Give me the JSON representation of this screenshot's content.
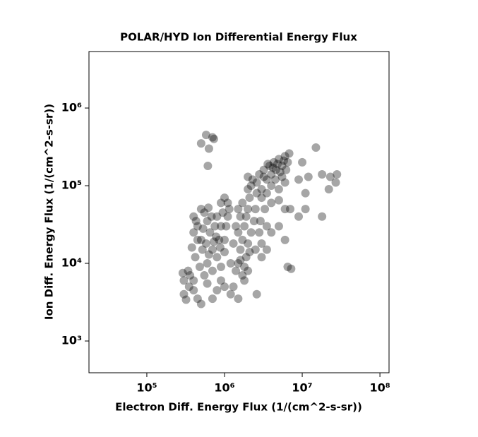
{
  "chart_data": {
    "type": "scatter",
    "title": "POLAR/HYD  Ion Differential Energy Flux",
    "x_label": "Electron Diff. Energy Flux (1/(cm^2-s-sr))",
    "y_label": "Ion Diff. Energy Flux (1/(cm^2-s-sr))",
    "xscale": "log",
    "yscale": "log",
    "xlim": [
      18000,
      131000000
    ],
    "ylim": [
      390,
      5340000
    ],
    "xticks": [
      {
        "value": 100000,
        "label": "10⁵"
      },
      {
        "value": 1000000,
        "label": "10⁶"
      },
      {
        "value": 10000000,
        "label": "10⁷"
      },
      {
        "value": 100000000,
        "label": "10⁸"
      }
    ],
    "yticks": [
      {
        "value": 1000,
        "label": "10³"
      },
      {
        "value": 10000,
        "label": "10⁴"
      },
      {
        "value": 100000,
        "label": "10⁵"
      },
      {
        "value": 1000000,
        "label": "10⁶"
      }
    ],
    "series": [
      {
        "color": "#000000",
        "x": [
          400000.0,
          450000.0,
          500000.0,
          550000.0,
          600000.0,
          650000.0,
          700000.0,
          800000.0,
          900000.0,
          1000000.0,
          1100000.0,
          420000.0,
          480000.0,
          520000.0,
          600000.0,
          700000.0,
          800000.0,
          900000.0,
          1000000.0,
          1200000.0,
          450000.0,
          500000.0,
          620000.0,
          750000.0,
          850000.0,
          950000.0,
          1050000.0,
          400000.0,
          580000.0,
          680000.0,
          780000.0,
          880000.0,
          1150000.0,
          430000.0,
          530000.0,
          630000.0,
          730000.0,
          360000.0,
          380000.0,
          900000.0,
          1000000.0,
          1100000.0,
          300000.0,
          320000.0,
          350000.0,
          400000.0,
          450000.0,
          500000.0,
          300000.0,
          340000.0,
          290000.0,
          600000.0,
          700000.0,
          800000.0,
          900000.0,
          550000.0,
          400000.0,
          1000000.0,
          1200000.0,
          1300000.0,
          1400000.0,
          1500000.0,
          1600000.0,
          1700000.0,
          1800000.0,
          1900000.0,
          2000000.0,
          2100000.0,
          2200000.0,
          1500000.0,
          1600000.0,
          1700000.0,
          1800000.0,
          1900000.0,
          2000000.0,
          2200000.0,
          2400000.0,
          2500000.0,
          2600000.0,
          1400000.0,
          1500000.0,
          2000000.0,
          2000000.0,
          2300000.0,
          1700000.0,
          2000000.0,
          1600000.0,
          2100000.0,
          1300000.0,
          1800000.0,
          1500000.0,
          2500000.0,
          2800000.0,
          3000000.0,
          2600000.0,
          2600000.0,
          2800000.0,
          3000000.0,
          3200000.0,
          3500000.0,
          3800000.0,
          4000000.0,
          4300000.0,
          4600000.0,
          5000000.0,
          5500000.0,
          6000000.0,
          6500000.0,
          3000000.0,
          3500000.0,
          4000000.0,
          4500000.0,
          5000000.0,
          5500000.0,
          6000000.0,
          3200000.0,
          3600000.0,
          4200000.0,
          4800000.0,
          5200000.0,
          5800000.0,
          6200000.0,
          6800000.0,
          4000000.0,
          5000000.0,
          6000000.0,
          3300000.0,
          2900000.0,
          3500000.0,
          4000000.0,
          5000000.0,
          6000000.0,
          3000000.0,
          3500000.0,
          6500000.0,
          7200000.0,
          580000.0,
          500000.0,
          630000.0,
          730000.0,
          610000.0,
          700000.0,
          15000000.0,
          10000000.0,
          12000000.0,
          18000000.0,
          23000000.0,
          28000000.0,
          27000000.0,
          18000000.0,
          11000000.0,
          9000000.0,
          22000000.0,
          11000000.0,
          9000000.0,
          7000000.0
        ],
        "values": [
          40000.0,
          30000.0,
          20000.0,
          45000.0,
          35000.0,
          25000.0,
          15000.0,
          40000.0,
          30000.0,
          20000.0,
          40000.0,
          12000.0,
          9000.0,
          15000.0,
          10000.0,
          8000.0,
          12000.0,
          9000.0,
          14000.0,
          10000.0,
          20000.0,
          50000.0,
          52000.0,
          30000.0,
          20000.0,
          45000.0,
          30000.0,
          25000.0,
          18000.0,
          40000.0,
          22000.0,
          16000.0,
          50000.0,
          35000.0,
          28000.0,
          13000.0,
          19000.0,
          7000.0,
          16000.0,
          60000.0,
          70000.0,
          60000.0,
          4000.0,
          3400.0,
          5000.0,
          4500.0,
          3500.0,
          3000.0,
          6000.0,
          8000.0,
          7500.0,
          5500.0,
          3500.0,
          4500.0,
          6000.0,
          7000.0,
          6000.0,
          5000.0,
          4000.0,
          5000.0,
          8000.0,
          10000.0,
          15000.0,
          20000.0,
          30000.0,
          40000.0,
          50000.0,
          70000.0,
          100000.0,
          25000.0,
          40000.0,
          60000.0,
          9000.0,
          12000.0,
          18000.0,
          25000.0,
          35000.0,
          50000.0,
          80000.0,
          30000.0,
          50000.0,
          90000.0,
          130000.0,
          120000.0,
          7000.0,
          8000.0,
          11000.0,
          14000.0,
          18000.0,
          6000.0,
          3500.0,
          15000.0,
          25000.0,
          18000.0,
          4000.0,
          110000.0,
          140000.0,
          90000.0,
          160000.0,
          120000.0,
          180000.0,
          140000.0,
          200000.0,
          160000.0,
          220000.0,
          180000.0,
          240000.0,
          200000.0,
          70000.0,
          80000.0,
          100000.0,
          120000.0,
          90000.0,
          130000.0,
          110000.0,
          130000.0,
          190000.0,
          170000.0,
          190000.0,
          150000.0,
          210000.0,
          160000.0,
          260000.0,
          60000.0,
          65000.0,
          50000.0,
          50000.0,
          35000.0,
          30000.0,
          25000.0,
          30000.0,
          20000.0,
          12000.0,
          15000.0,
          9000.0,
          8500.0,
          450000.0,
          350000.0,
          300000.0,
          400000.0,
          180000.0,
          420000.0,
          310000.0,
          200000.0,
          130000.0,
          140000.0,
          130000.0,
          140000.0,
          110000.0,
          40000.0,
          50000.0,
          40000.0,
          90000.0,
          80000.0,
          120000.0,
          50000.0
        ]
      }
    ]
  }
}
